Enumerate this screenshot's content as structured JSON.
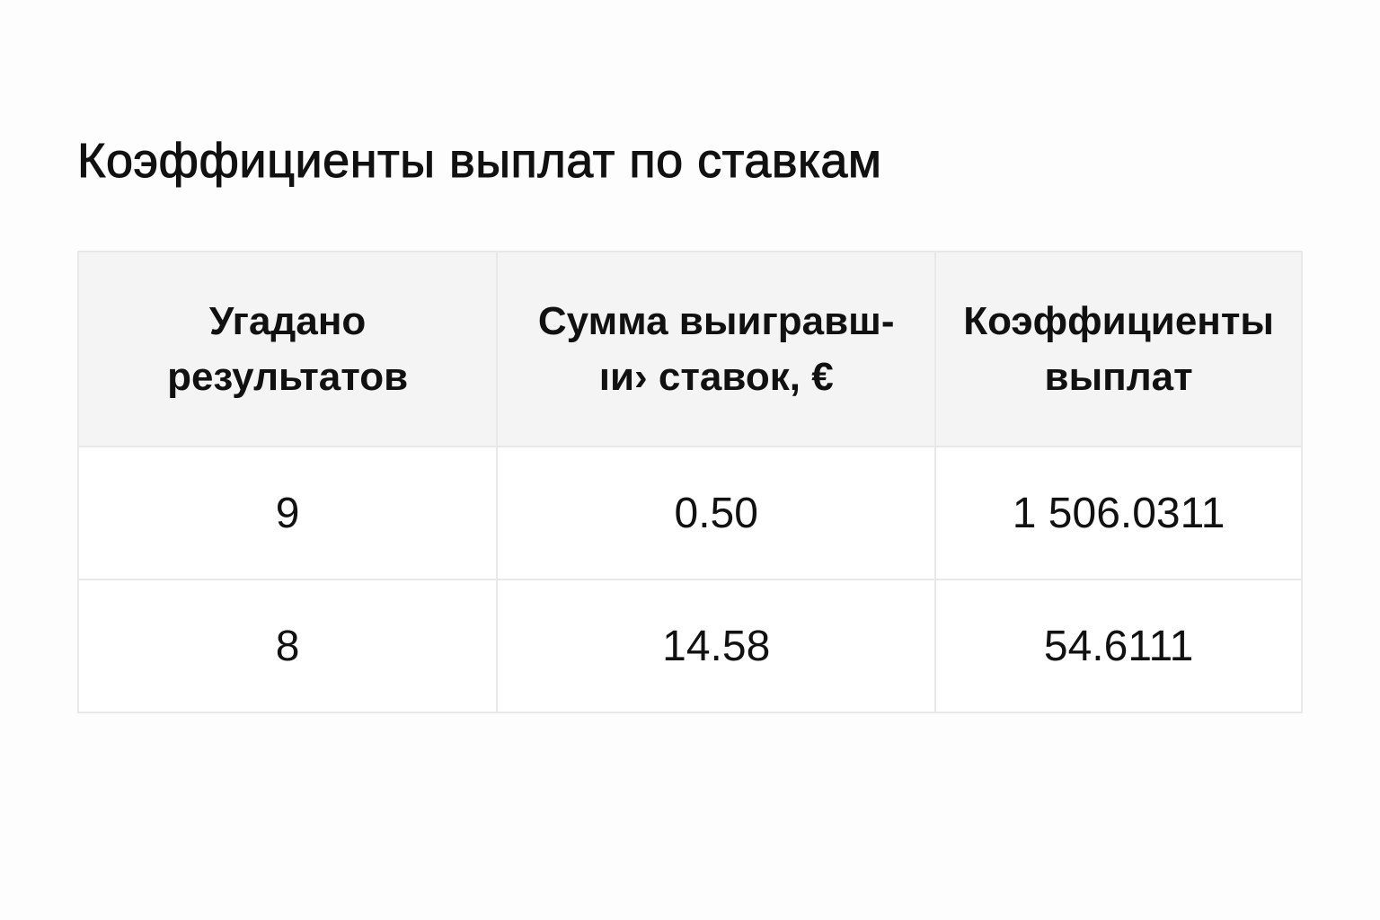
{
  "title": "Коэффициенты выплат по ставкам",
  "table": {
    "headers": [
      "Угадано\nрезультатов",
      "Сумма выигравш-\nıи› ставок, €",
      "Коэффициенты\nвыплат"
    ],
    "rows": [
      [
        "9",
        "0.50",
        "1 506.0311"
      ],
      [
        "8",
        "14.58",
        "54.6111"
      ]
    ]
  }
}
